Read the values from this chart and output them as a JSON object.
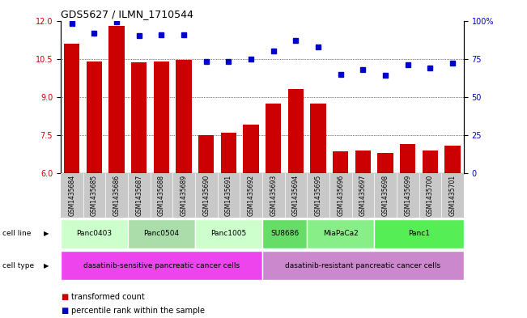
{
  "title": "GDS5627 / ILMN_1710544",
  "samples": [
    "GSM1435684",
    "GSM1435685",
    "GSM1435686",
    "GSM1435687",
    "GSM1435688",
    "GSM1435689",
    "GSM1435690",
    "GSM1435691",
    "GSM1435692",
    "GSM1435693",
    "GSM1435694",
    "GSM1435695",
    "GSM1435696",
    "GSM1435697",
    "GSM1435698",
    "GSM1435699",
    "GSM1435700",
    "GSM1435701"
  ],
  "bar_values": [
    11.1,
    10.4,
    11.8,
    10.35,
    10.4,
    10.45,
    7.5,
    7.6,
    7.9,
    8.75,
    9.3,
    8.75,
    6.85,
    6.9,
    6.8,
    7.15,
    6.9,
    7.1
  ],
  "percentile_values": [
    98,
    92,
    99,
    90,
    91,
    91,
    73,
    73,
    75,
    80,
    87,
    83,
    65,
    68,
    64,
    71,
    69,
    72
  ],
  "ylim_left": [
    6,
    12
  ],
  "ylim_right": [
    0,
    100
  ],
  "yticks_left": [
    6,
    7.5,
    9,
    10.5,
    12
  ],
  "yticks_right": [
    0,
    25,
    50,
    75,
    100
  ],
  "bar_color": "#cc0000",
  "dot_color": "#0000cc",
  "cell_lines": [
    {
      "label": "Panc0403",
      "start": 0,
      "end": 3,
      "color": "#ccffcc"
    },
    {
      "label": "Panc0504",
      "start": 3,
      "end": 6,
      "color": "#aaddaa"
    },
    {
      "label": "Panc1005",
      "start": 6,
      "end": 9,
      "color": "#ccffcc"
    },
    {
      "label": "SU8686",
      "start": 9,
      "end": 11,
      "color": "#66dd66"
    },
    {
      "label": "MiaPaCa2",
      "start": 11,
      "end": 14,
      "color": "#88ee88"
    },
    {
      "label": "Panc1",
      "start": 14,
      "end": 18,
      "color": "#55ee55"
    }
  ],
  "cell_types": [
    {
      "label": "dasatinib-sensitive pancreatic cancer cells",
      "start": 0,
      "end": 9,
      "color": "#ee44ee"
    },
    {
      "label": "dasatinib-resistant pancreatic cancer cells",
      "start": 9,
      "end": 18,
      "color": "#cc88cc"
    }
  ],
  "legend_items": [
    {
      "label": "transformed count",
      "color": "#cc0000"
    },
    {
      "label": "percentile rank within the sample",
      "color": "#0000cc"
    }
  ]
}
